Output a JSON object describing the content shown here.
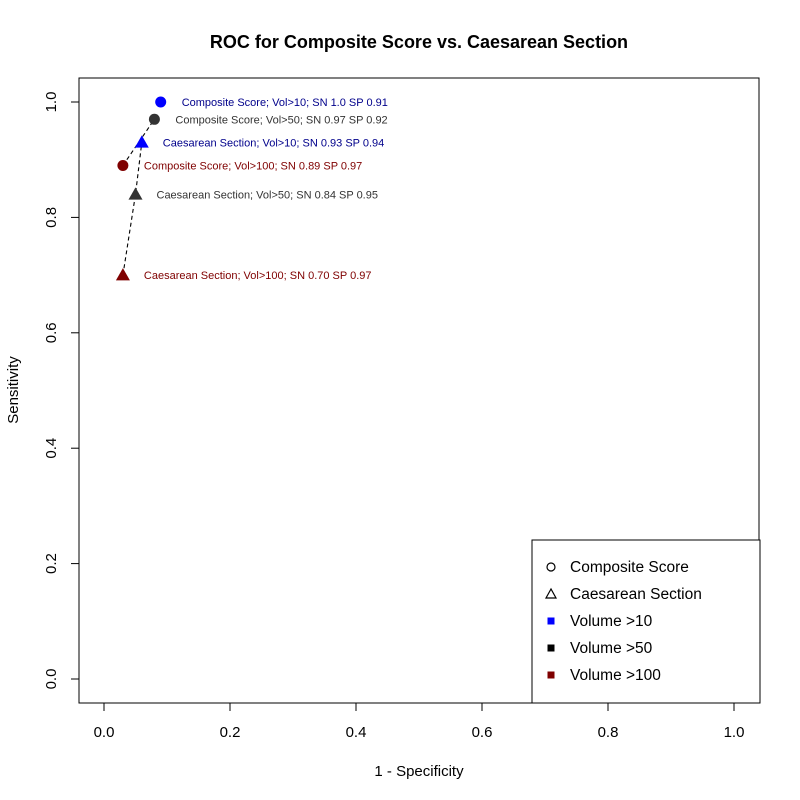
{
  "chart_data": {
    "type": "scatter",
    "title": "ROC for Composite Score vs. Caesarean Section",
    "xlabel": "1 - Specificity",
    "ylabel": "Sensitivity",
    "xlim": [
      0,
      1
    ],
    "ylim": [
      0,
      1
    ],
    "xticks": [
      {
        "value": 0.0,
        "label": "0.0"
      },
      {
        "value": 0.2,
        "label": "0.2"
      },
      {
        "value": 0.4,
        "label": "0.4"
      },
      {
        "value": 0.6,
        "label": "0.6"
      },
      {
        "value": 0.8,
        "label": "0.8"
      },
      {
        "value": 1.0,
        "label": "1.0"
      }
    ],
    "yticks": [
      {
        "value": 0.0,
        "label": "0.0"
      },
      {
        "value": 0.2,
        "label": "0.2"
      },
      {
        "value": 0.4,
        "label": "0.4"
      },
      {
        "value": 0.6,
        "label": "0.6"
      },
      {
        "value": 0.8,
        "label": "0.8"
      },
      {
        "value": 1.0,
        "label": "1.0"
      }
    ],
    "grid": false,
    "legend_position": "bottom-right",
    "colors": {
      "vol10": "#0000ff",
      "vol50": "#333333",
      "vol100": "#7f0000",
      "vol10_label": "#00008b"
    },
    "points": [
      {
        "name": "cs10",
        "x": 0.09,
        "y": 1.0,
        "shape": "circle",
        "color_key": "vol10",
        "label_color_key": "vol10_label",
        "label": "Composite Score; Vol>10; SN 1.0 SP 0.91"
      },
      {
        "name": "cs50",
        "x": 0.08,
        "y": 0.97,
        "shape": "circle",
        "color_key": "vol50",
        "label_color_key": "vol50",
        "label": "Composite Score; Vol>50; SN 0.97 SP 0.92"
      },
      {
        "name": "cs100",
        "x": 0.03,
        "y": 0.89,
        "shape": "circle",
        "color_key": "vol100",
        "label_color_key": "vol100",
        "label": "Composite Score; Vol>100; SN 0.89 SP 0.97"
      },
      {
        "name": "cae10",
        "x": 0.06,
        "y": 0.93,
        "shape": "triangle",
        "color_key": "vol10",
        "label_color_key": "vol10_label",
        "label": "Caesarean Section; Vol>10; SN 0.93 SP 0.94"
      },
      {
        "name": "cae50",
        "x": 0.05,
        "y": 0.84,
        "shape": "triangle",
        "color_key": "vol50",
        "label_color_key": "vol50",
        "label": "Caesarean Section; Vol>50; SN 0.84 SP 0.95"
      },
      {
        "name": "cae100",
        "x": 0.03,
        "y": 0.7,
        "shape": "triangle",
        "color_key": "vol100",
        "label_color_key": "vol100",
        "label": "Caesarean Section; Vol>100; SN 0.70 SP 0.97"
      }
    ],
    "lines": [
      {
        "name": "composite-line",
        "points": [
          [
            0.03,
            0.89
          ],
          [
            0.08,
            0.97
          ]
        ]
      },
      {
        "name": "caesarean-line",
        "points": [
          [
            0.03,
            0.7
          ],
          [
            0.05,
            0.84
          ],
          [
            0.06,
            0.93
          ]
        ]
      }
    ],
    "legend": [
      {
        "label": "Composite Score",
        "symbol": "circle-open",
        "color": "#000000"
      },
      {
        "label": "Caesarean Section",
        "symbol": "triangle-open",
        "color": "#000000"
      },
      {
        "label": "Volume >10",
        "symbol": "square",
        "color": "#0000ff"
      },
      {
        "label": "Volume >50",
        "symbol": "square",
        "color": "#000000"
      },
      {
        "label": "Volume >100",
        "symbol": "square",
        "color": "#7f0000"
      }
    ]
  }
}
